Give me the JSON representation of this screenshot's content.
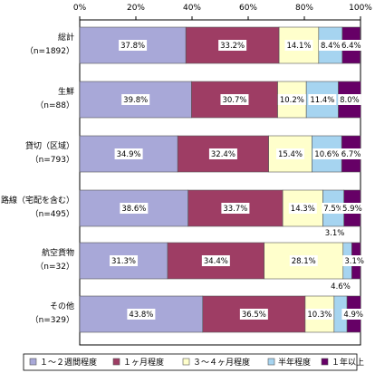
{
  "chart_data": {
    "type": "bar",
    "orientation": "horizontal",
    "stacked": true,
    "xlim": [
      0,
      100
    ],
    "x_ticks": [
      "0%",
      "20%",
      "40%",
      "60%",
      "80%",
      "100%"
    ],
    "categories": [
      [
        "総計",
        "（n=1892）"
      ],
      [
        "生鮮",
        "（n=88）"
      ],
      [
        "貸切（区域）",
        "（n=793）"
      ],
      [
        "路線（宅配を含む）",
        "（n=495）"
      ],
      [
        "航空貨物",
        "（n=32）"
      ],
      [
        "その他",
        "（n=329）"
      ]
    ],
    "series": [
      {
        "name": "１～２週間程度",
        "color": "#a8a8d8",
        "values": [
          37.8,
          39.8,
          34.9,
          38.6,
          31.3,
          43.8
        ]
      },
      {
        "name": "１ヶ月程度",
        "color": "#9e3d64",
        "values": [
          33.2,
          30.7,
          32.4,
          33.7,
          34.4,
          36.5
        ]
      },
      {
        "name": "３～４ヶ月程度",
        "color": "#ffffcc",
        "values": [
          14.1,
          10.2,
          15.4,
          14.3,
          28.1,
          10.3
        ]
      },
      {
        "name": "半年程度",
        "color": "#a6d4f0",
        "values": [
          8.4,
          11.4,
          10.6,
          7.5,
          3.1,
          4.6
        ]
      },
      {
        "name": "１年以上",
        "color": "#660066",
        "values": [
          6.4,
          8.0,
          6.7,
          5.9,
          3.1,
          4.9
        ]
      }
    ],
    "data_labels": [
      [
        "37.8%",
        "33.2%",
        "14.1%",
        "8.4%",
        "6.4%"
      ],
      [
        "39.8%",
        "30.7%",
        "10.2%",
        "11.4%",
        "8.0%"
      ],
      [
        "34.9%",
        "32.4%",
        "15.4%",
        "10.6%",
        "6.7%"
      ],
      [
        "38.6%",
        "33.7%",
        "14.3%",
        "7.5%",
        "5.9%"
      ],
      [
        "31.3%",
        "34.4%",
        "28.1%",
        "3.1%",
        "3.1%"
      ],
      [
        "43.8%",
        "36.5%",
        "10.3%",
        "4.6%",
        "4.9%"
      ]
    ],
    "legend_position": "bottom",
    "grid": false
  }
}
